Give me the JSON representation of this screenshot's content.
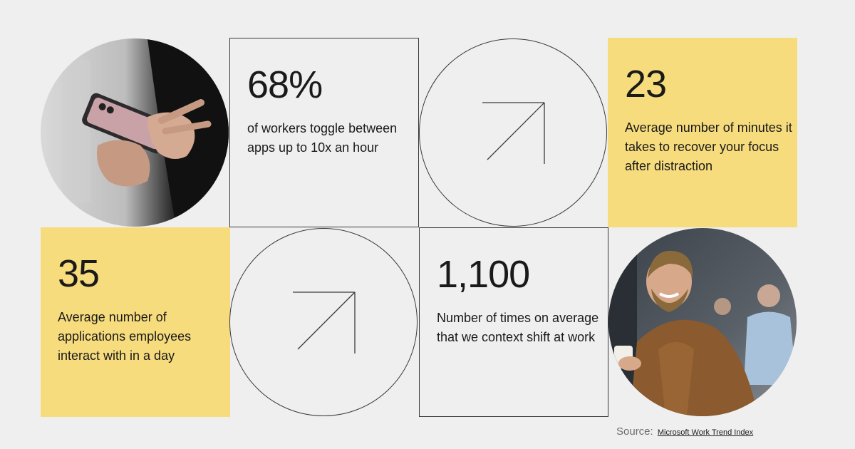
{
  "stats": [
    {
      "number": "68%",
      "description": "of workers toggle between apps up to 10x an hour"
    },
    {
      "number": "23",
      "description": "Average number of minutes it takes to recover your focus after distraction"
    },
    {
      "number": "35",
      "description": "Average number of applications employees interact with in a day"
    },
    {
      "number": "1,100",
      "description": "Number of times on average that we context shift at work"
    }
  ],
  "source": {
    "label": "Source:",
    "link_text": "Microsoft Work Trend Index"
  },
  "icons": [
    "arrow-up-right-icon",
    "arrow-up-right-icon"
  ],
  "photos": [
    "person-using-smartphone-photo",
    "smiling-man-with-coffee-photo"
  ],
  "colors": {
    "background": "#efefef",
    "accent_yellow": "#f7dc7e",
    "line": "#3a3a3a",
    "text": "#1a1a1a"
  }
}
